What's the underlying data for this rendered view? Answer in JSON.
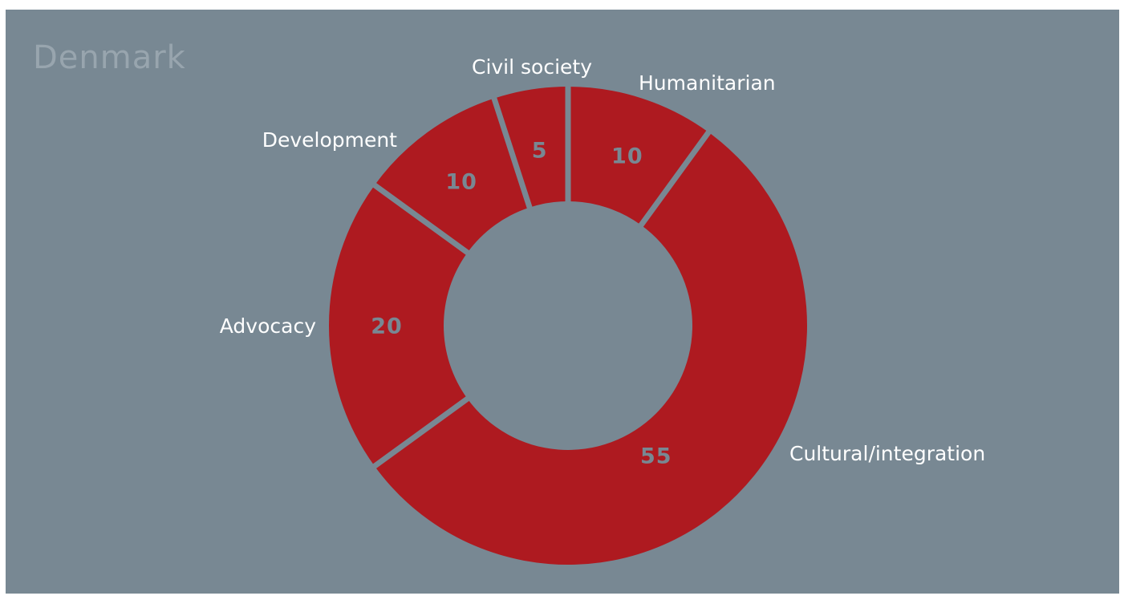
{
  "chart_data": {
    "type": "pie",
    "variant": "donut",
    "title": "Denmark",
    "start": "12 o'clock",
    "direction": "clockwise",
    "slices": [
      {
        "label": "Humanitarian",
        "value": 10
      },
      {
        "label": "Cultural/integration",
        "value": 55
      },
      {
        "label": "Advocacy",
        "value": 20
      },
      {
        "label": "Development",
        "value": 10
      },
      {
        "label": "Civil society",
        "value": 5
      }
    ],
    "colors": {
      "background": "#788893",
      "slice": "#ae1a20",
      "separator": "#788893",
      "title": "#98a5ae",
      "category_label": "#ffffff",
      "value_label": "#788893"
    }
  }
}
